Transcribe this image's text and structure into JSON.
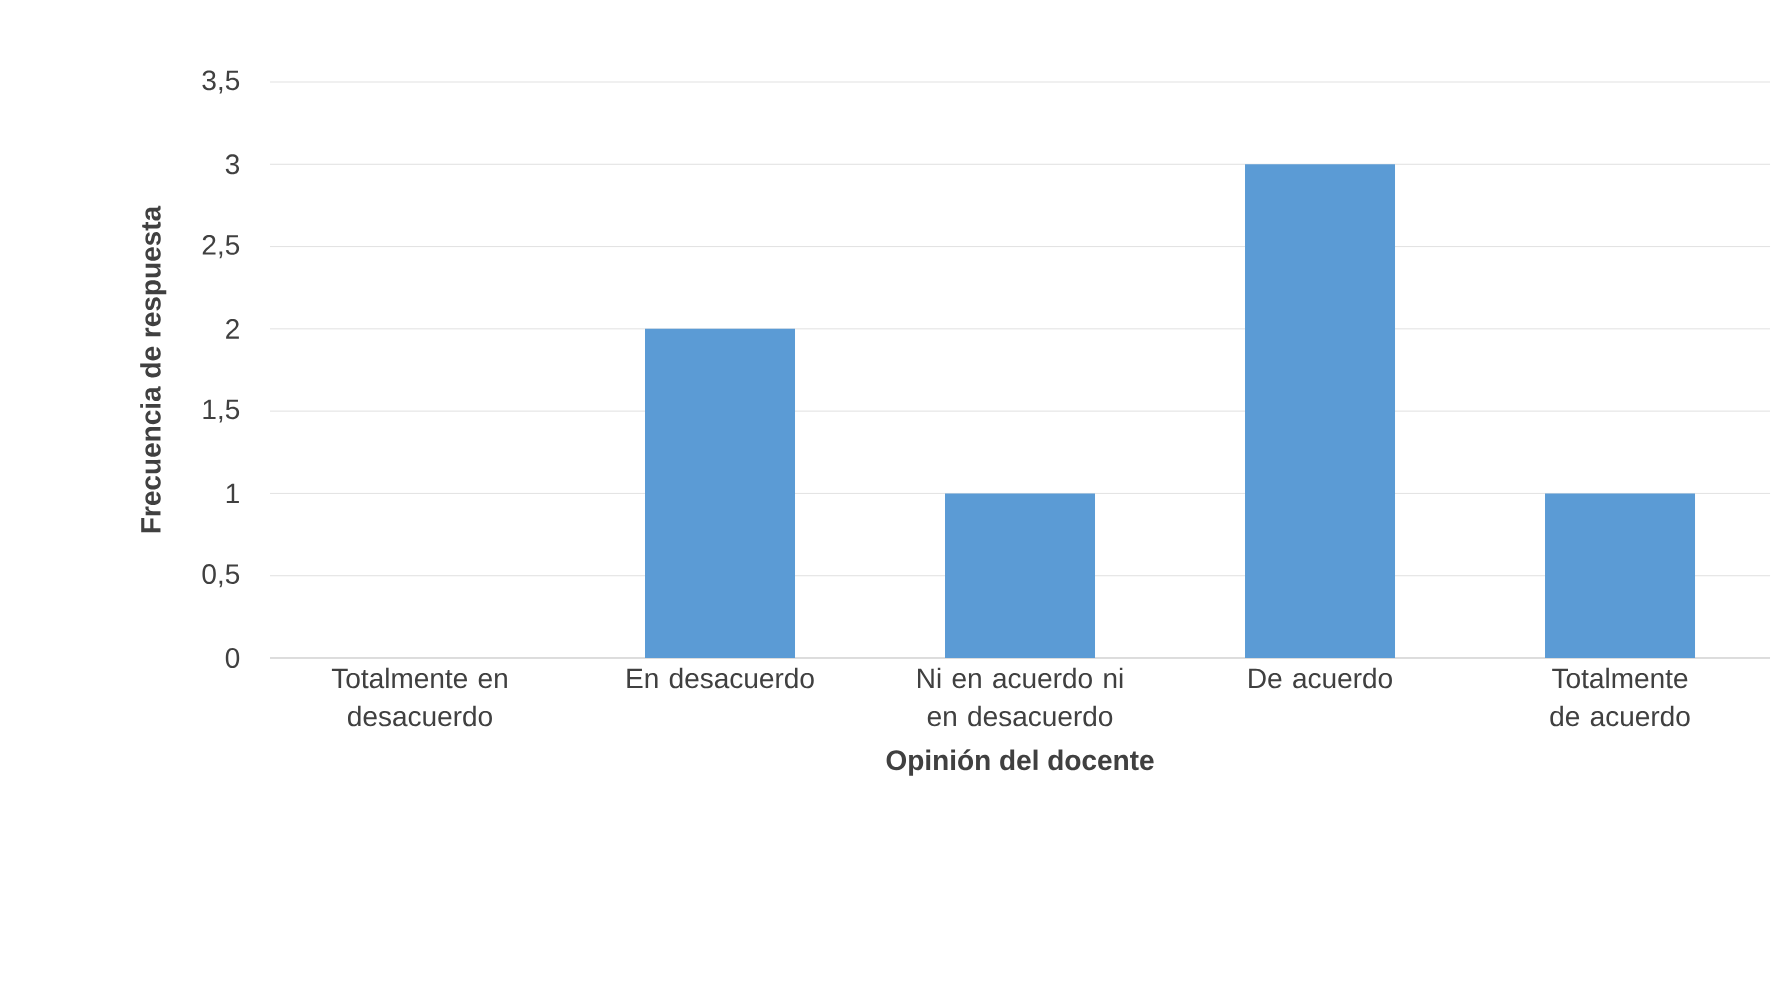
{
  "chart_data": {
    "type": "bar",
    "xlabel": "Opinión del docente",
    "ylabel": "Frecuencia de respuesta",
    "categories": [
      "Totalmente en desacuerdo",
      "En desacuerdo",
      "Ni en acuerdo ni en desacuerdo",
      "De acuerdo",
      "Totalmente de acuerdo"
    ],
    "values": [
      0,
      2,
      1,
      3,
      1
    ],
    "color": "#5b9bd5",
    "ylim": [
      0,
      3.5
    ],
    "yticks": [
      0,
      {
        "value": 0.5,
        "label": "0,5"
      },
      1,
      {
        "value": 1.5,
        "label": "1,5"
      },
      2,
      {
        "value": 2.5,
        "label": "2,5"
      },
      3,
      {
        "value": 3.5,
        "label": "3,5"
      }
    ],
    "grid": "y"
  }
}
